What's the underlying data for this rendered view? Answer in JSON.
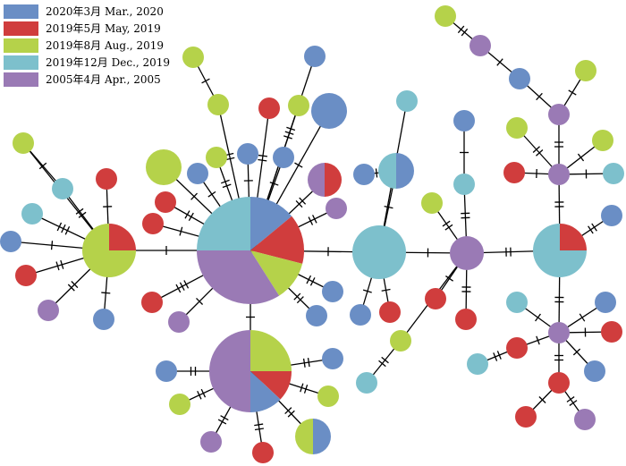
{
  "legend": [
    {
      "label": "2020年3月 Mar., 2020",
      "color": "#6A8EC5"
    },
    {
      "label": "2019年5月 May, 2019",
      "color": "#D03D3D"
    },
    {
      "label": "2019年8月 Aug., 2019",
      "color": "#B5D24A"
    },
    {
      "label": "2019年12月 Dec., 2019",
      "color": "#7DC0CC"
    },
    {
      "label": "2005年4月 Apr., 2005",
      "color": "#9A7AB5"
    }
  ],
  "colors": {
    "mar2020": "#6A8EC5",
    "may2019": "#D03D3D",
    "aug2019": "#B5D24A",
    "dec2019": "#7DC0CC",
    "apr2005": "#9A7AB5",
    "edge": "#000000"
  }
}
